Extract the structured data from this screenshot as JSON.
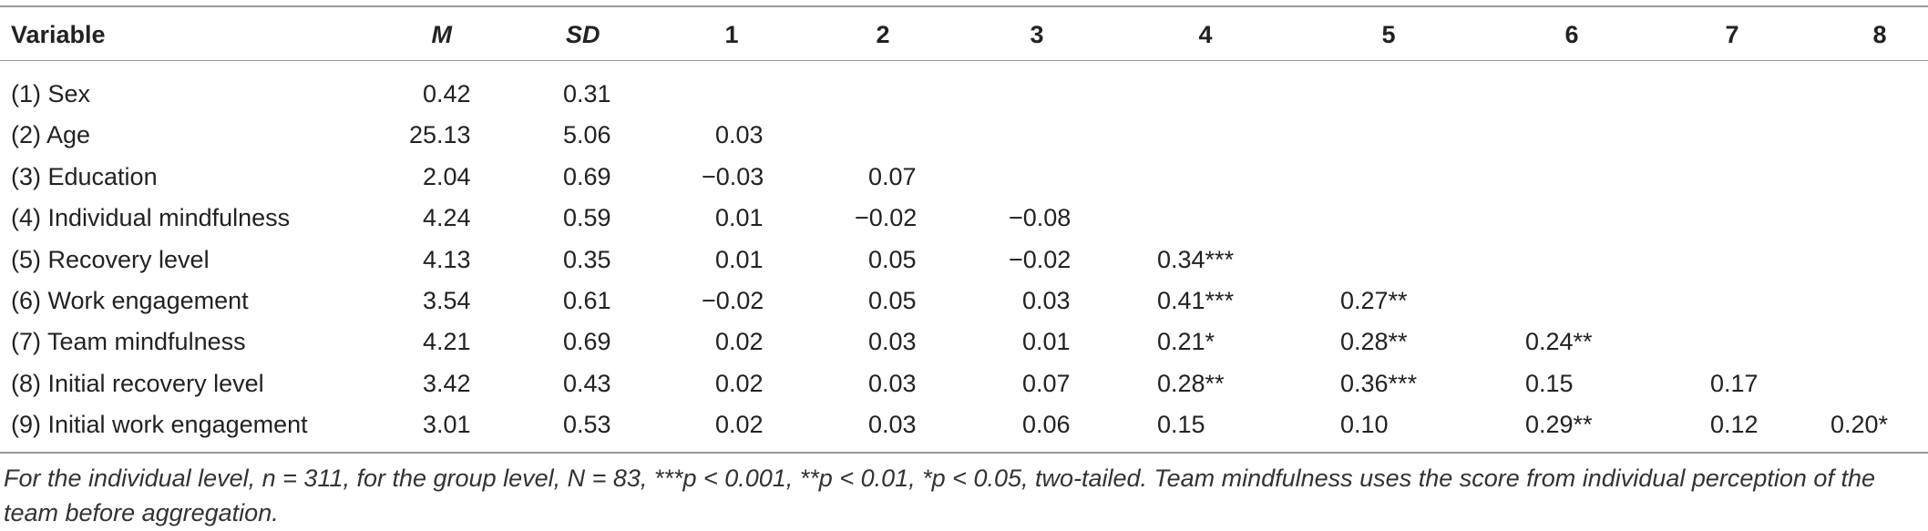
{
  "table": {
    "header": [
      "Variable",
      "M",
      "SD",
      "1",
      "2",
      "3",
      "4",
      "5",
      "6",
      "7",
      "8"
    ],
    "rows": [
      [
        "(1) Sex",
        "0.42",
        "0.31"
      ],
      [
        "(2) Age",
        "25.13",
        "5.06",
        "0.03"
      ],
      [
        "(3) Education",
        "2.04",
        "0.69",
        "−0.03",
        "0.07"
      ],
      [
        "(4) Individual mindfulness",
        "4.24",
        "0.59",
        "0.01",
        "−0.02",
        "−0.08"
      ],
      [
        "(5) Recovery level",
        "4.13",
        "0.35",
        "0.01",
        "0.05",
        "−0.02",
        "0.34***"
      ],
      [
        "(6) Work engagement",
        "3.54",
        "0.61",
        "−0.02",
        "0.05",
        "0.03",
        "0.41***",
        "0.27**"
      ],
      [
        "(7) Team mindfulness",
        "4.21",
        "0.69",
        "0.02",
        "0.03",
        "0.01",
        "0.21*",
        "0.28**",
        "0.24**"
      ],
      [
        "(8) Initial recovery level",
        "3.42",
        "0.43",
        "0.02",
        "0.03",
        "0.07",
        "0.28**",
        "0.36***",
        "0.15",
        "0.17"
      ],
      [
        "(9) Initial work engagement",
        "3.01",
        "0.53",
        "0.02",
        "0.03",
        "0.06",
        "0.15",
        "0.10",
        "0.29**",
        "0.12",
        "0.20*"
      ]
    ],
    "footnote": "For the individual level, n = 311, for the group level, N = 83, ***p < 0.001, **p < 0.01, *p < 0.05, two-tailed. Team mindfulness uses the score from individual perception of the team before aggregation."
  }
}
